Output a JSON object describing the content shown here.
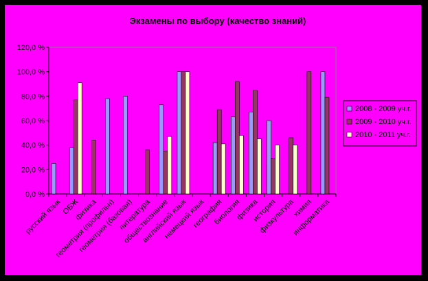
{
  "chart_data": {
    "type": "bar",
    "title": "Экзамены по выбору (качество знаний)",
    "xlabel": "",
    "ylabel": "",
    "ylim": [
      0,
      120
    ],
    "ytick_labels": [
      "0,0 %",
      "20,0 %",
      "40,0 %",
      "60,0 %",
      "80,0 %",
      "100,0 %",
      "120,0 %"
    ],
    "grid": false,
    "legend_position": "right",
    "categories": [
      "русский язык",
      "ОБЖ",
      "физика",
      "геометрия (профильн)",
      "геометрия (базовая)",
      "литература",
      "обществознание",
      "английский язык",
      "немецкий язык",
      "география",
      "биология",
      "физика",
      "история",
      "физкультура",
      "химия",
      "информатика"
    ],
    "series": [
      {
        "name": "2008 - 2009 уч.г.",
        "color": "#9999FF",
        "values": [
          25,
          38,
          null,
          78,
          80,
          null,
          73,
          100,
          null,
          42,
          63,
          67,
          60,
          null,
          null,
          100
        ]
      },
      {
        "name": "2009 - 2010 уч.г.",
        "color": "#993366",
        "values": [
          null,
          77,
          44,
          null,
          null,
          36,
          35,
          100,
          null,
          69,
          92,
          85,
          29,
          46,
          100,
          79
        ]
      },
      {
        "name": "2010 - 2011 уч.г.",
        "color": "#FFFFCC",
        "values": [
          null,
          91,
          null,
          null,
          null,
          null,
          47,
          100,
          null,
          41,
          48,
          45,
          40,
          40,
          null,
          null
        ]
      }
    ]
  }
}
